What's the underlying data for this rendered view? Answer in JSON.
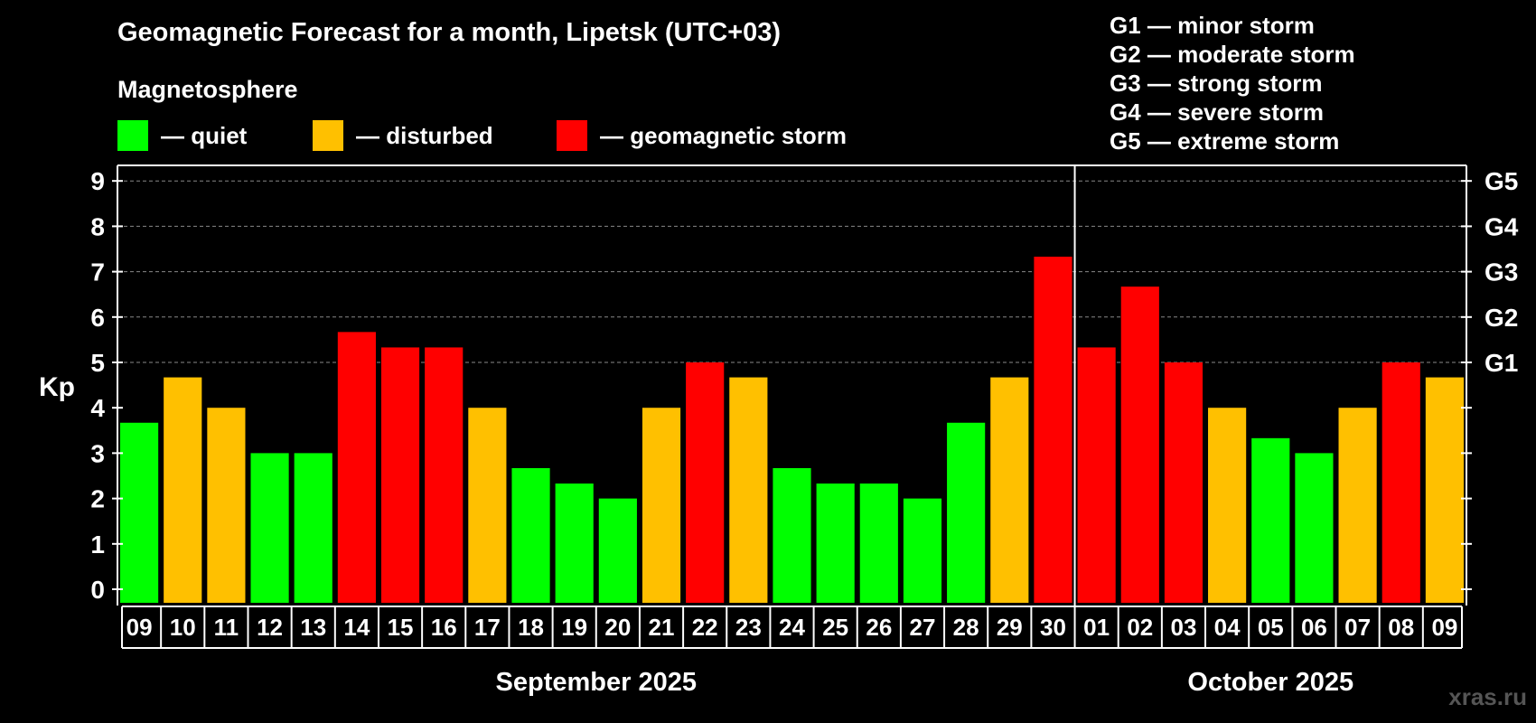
{
  "title": "Geomagnetic Forecast for a month, Lipetsk (UTC+03)",
  "subtitle": "Magnetosphere",
  "legend": [
    {
      "label": "— quiet",
      "color": "#00ff00"
    },
    {
      "label": "— disturbed",
      "color": "#ffc000"
    },
    {
      "label": "— geomagnetic storm",
      "color": "#ff0000"
    }
  ],
  "storm_scale": [
    "G1 — minor storm",
    "G2 — moderate storm",
    "G3 — strong storm",
    "G4 — severe storm",
    "G5 — extreme storm"
  ],
  "watermark": "xras.ru",
  "chart_data": {
    "type": "bar",
    "ylabel": "Kp",
    "ylim": [
      0,
      9
    ],
    "yticks": [
      0,
      1,
      2,
      3,
      4,
      5,
      6,
      7,
      8,
      9
    ],
    "right_axis_labels": [
      {
        "y": 5,
        "label": "G1"
      },
      {
        "y": 6,
        "label": "G2"
      },
      {
        "y": 7,
        "label": "G3"
      },
      {
        "y": 8,
        "label": "G4"
      },
      {
        "y": 9,
        "label": "G5"
      }
    ],
    "grid": true,
    "categories": [
      "09",
      "10",
      "11",
      "12",
      "13",
      "14",
      "15",
      "16",
      "17",
      "18",
      "19",
      "20",
      "21",
      "22",
      "23",
      "24",
      "25",
      "26",
      "27",
      "28",
      "29",
      "30",
      "01",
      "02",
      "03",
      "04",
      "05",
      "06",
      "07",
      "08",
      "09"
    ],
    "values": [
      3.67,
      4.67,
      4.0,
      3.0,
      3.0,
      5.67,
      5.33,
      5.33,
      4.0,
      2.67,
      2.33,
      2.0,
      4.0,
      5.0,
      4.67,
      2.67,
      2.33,
      2.33,
      2.0,
      3.67,
      4.67,
      7.33,
      5.33,
      6.67,
      5.0,
      4.0,
      3.33,
      3.0,
      4.0,
      5.0,
      4.67
    ],
    "levels": [
      "quiet",
      "disturbed",
      "disturbed",
      "quiet",
      "quiet",
      "storm",
      "storm",
      "storm",
      "disturbed",
      "quiet",
      "quiet",
      "quiet",
      "disturbed",
      "storm",
      "disturbed",
      "quiet",
      "quiet",
      "quiet",
      "quiet",
      "quiet",
      "disturbed",
      "storm",
      "storm",
      "storm",
      "storm",
      "disturbed",
      "quiet",
      "quiet",
      "disturbed",
      "storm",
      "disturbed"
    ],
    "level_colors": {
      "quiet": "#00ff00",
      "disturbed": "#ffc000",
      "storm": "#ff0000"
    },
    "months": [
      {
        "label": "September 2025",
        "first_index": 0,
        "last_index": 21
      },
      {
        "label": "October 2025",
        "first_index": 22,
        "last_index": 30
      }
    ]
  }
}
